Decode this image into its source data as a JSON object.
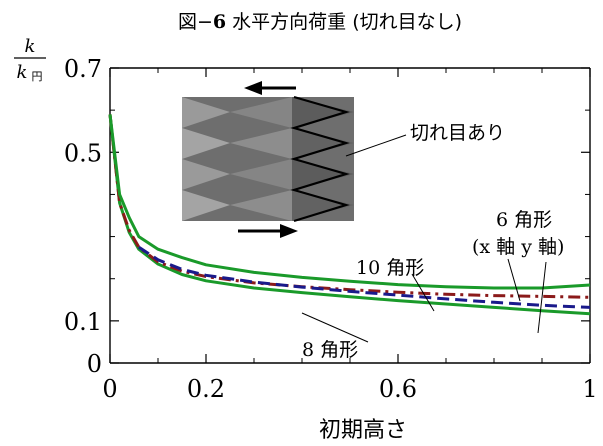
{
  "chart_data": {
    "type": "line",
    "title": "図−6 水平方向荷重 (切れ目なし)",
    "title_parts": {
      "prefix": "図−",
      "number": "6",
      "rest": " 水平方向荷重 (切れ目なし)"
    },
    "xlabel": "初期高さ",
    "ylabel": {
      "numerator": "k",
      "denominator": "k",
      "subscript": "円"
    },
    "xlim": [
      0,
      1
    ],
    "ylim": [
      0,
      0.7
    ],
    "x_ticks": [
      {
        "value": 0,
        "label": "0"
      },
      {
        "value": 0.2,
        "label": "0.2"
      },
      {
        "value": 0.6,
        "label": "0.6"
      },
      {
        "value": 1,
        "label": "1"
      }
    ],
    "y_ticks": [
      {
        "value": 0,
        "label": "0"
      },
      {
        "value": 0.1,
        "label": "0.1"
      },
      {
        "value": 0.5,
        "label": "0.5"
      },
      {
        "value": 0.7,
        "label": "0.7"
      }
    ],
    "y_minor_ticks": [
      0.2,
      0.3,
      0.4,
      0.6
    ],
    "x_minor_ticks": [
      0.1,
      0.3,
      0.4,
      0.5,
      0.7,
      0.8,
      0.9
    ],
    "series": [
      {
        "id": "s8",
        "color": "#1a9a2a",
        "dash": "solid",
        "x": [
          0,
          0.02,
          0.04,
          0.06,
          0.1,
          0.15,
          0.2,
          0.3,
          0.4,
          0.5,
          0.6,
          0.7,
          0.8,
          0.9,
          1.0
        ],
        "y": [
          0.59,
          0.38,
          0.31,
          0.27,
          0.235,
          0.21,
          0.195,
          0.178,
          0.167,
          0.157,
          0.148,
          0.14,
          0.132,
          0.124,
          0.117
        ]
      },
      {
        "id": "s10",
        "color": "#8b1a1a",
        "dash": "dashdot",
        "x": [
          0,
          0.02,
          0.04,
          0.06,
          0.1,
          0.15,
          0.2,
          0.3,
          0.4,
          0.5,
          0.6,
          0.7,
          0.8,
          0.9,
          1.0
        ],
        "y": [
          0.59,
          0.38,
          0.315,
          0.275,
          0.24,
          0.218,
          0.205,
          0.19,
          0.181,
          0.174,
          0.168,
          0.163,
          0.16,
          0.158,
          0.156
        ]
      },
      {
        "id": "s6x",
        "color": "#1a9a2a",
        "dash": "solid",
        "x": [
          0,
          0.02,
          0.04,
          0.06,
          0.1,
          0.15,
          0.2,
          0.3,
          0.4,
          0.5,
          0.6,
          0.7,
          0.8,
          0.9,
          1.0
        ],
        "y": [
          0.59,
          0.4,
          0.345,
          0.3,
          0.27,
          0.25,
          0.233,
          0.215,
          0.203,
          0.194,
          0.186,
          0.181,
          0.178,
          0.178,
          0.185
        ]
      },
      {
        "id": "s6y",
        "color": "#1a1a8b",
        "dash": "dashed",
        "x": [
          0.06,
          0.1,
          0.15,
          0.2,
          0.3,
          0.4,
          0.5,
          0.6,
          0.7,
          0.8,
          0.9,
          1.0
        ],
        "y": [
          0.275,
          0.245,
          0.222,
          0.208,
          0.192,
          0.18,
          0.17,
          0.161,
          0.152,
          0.144,
          0.137,
          0.132
        ]
      }
    ],
    "annotations": [
      {
        "id": "ann-8",
        "text": "8 角形",
        "num": "8",
        "kanji": " 角形"
      },
      {
        "id": "ann-10",
        "text": "10 角形",
        "num": "10",
        "kanji": " 角形"
      },
      {
        "id": "ann-6",
        "text": "6 角形",
        "num": "6",
        "kanji": " 角形"
      },
      {
        "id": "ann-axes",
        "text": "(x 軸 y 軸)"
      },
      {
        "id": "ann-cut",
        "text": "切れ目あり"
      }
    ],
    "grid": false,
    "legend": "none"
  }
}
